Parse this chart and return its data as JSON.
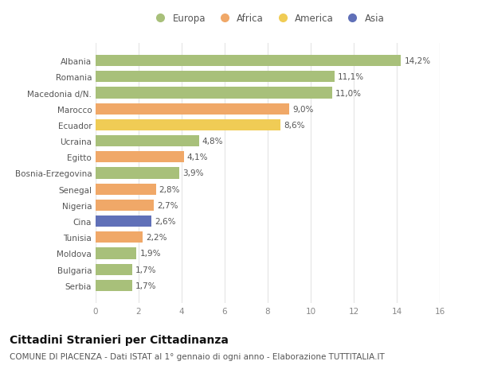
{
  "countries": [
    "Serbia",
    "Bulgaria",
    "Moldova",
    "Tunisia",
    "Cina",
    "Nigeria",
    "Senegal",
    "Bosnia-Erzegovina",
    "Egitto",
    "Ucraina",
    "Ecuador",
    "Marocco",
    "Macedonia d/N.",
    "Romania",
    "Albania"
  ],
  "values": [
    1.7,
    1.7,
    1.9,
    2.2,
    2.6,
    2.7,
    2.8,
    3.9,
    4.1,
    4.8,
    8.6,
    9.0,
    11.0,
    11.1,
    14.2
  ],
  "labels": [
    "1,7%",
    "1,7%",
    "1,9%",
    "2,2%",
    "2,6%",
    "2,7%",
    "2,8%",
    "3,9%",
    "4,1%",
    "4,8%",
    "8,6%",
    "9,0%",
    "11,0%",
    "11,1%",
    "14,2%"
  ],
  "colors": [
    "#a8c07a",
    "#a8c07a",
    "#a8c07a",
    "#f0a868",
    "#6070b8",
    "#f0a868",
    "#f0a868",
    "#a8c07a",
    "#f0a868",
    "#a8c07a",
    "#f0cc55",
    "#f0a868",
    "#a8c07a",
    "#a8c07a",
    "#a8c07a"
  ],
  "legend": [
    {
      "label": "Europa",
      "color": "#a8c07a"
    },
    {
      "label": "Africa",
      "color": "#f0a868"
    },
    {
      "label": "America",
      "color": "#f0cc55"
    },
    {
      "label": "Asia",
      "color": "#6070b8"
    }
  ],
  "xlim": [
    0,
    16
  ],
  "xticks": [
    0,
    2,
    4,
    6,
    8,
    10,
    12,
    14,
    16
  ],
  "title": "Cittadini Stranieri per Cittadinanza",
  "subtitle": "COMUNE DI PIACENZA - Dati ISTAT al 1° gennaio di ogni anno - Elaborazione TUTTITALIA.IT",
  "background_color": "#ffffff",
  "grid_color": "#e8e8e8",
  "bar_height": 0.7,
  "title_fontsize": 10,
  "subtitle_fontsize": 7.5,
  "label_fontsize": 7.5,
  "tick_fontsize": 7.5,
  "legend_fontsize": 8.5
}
